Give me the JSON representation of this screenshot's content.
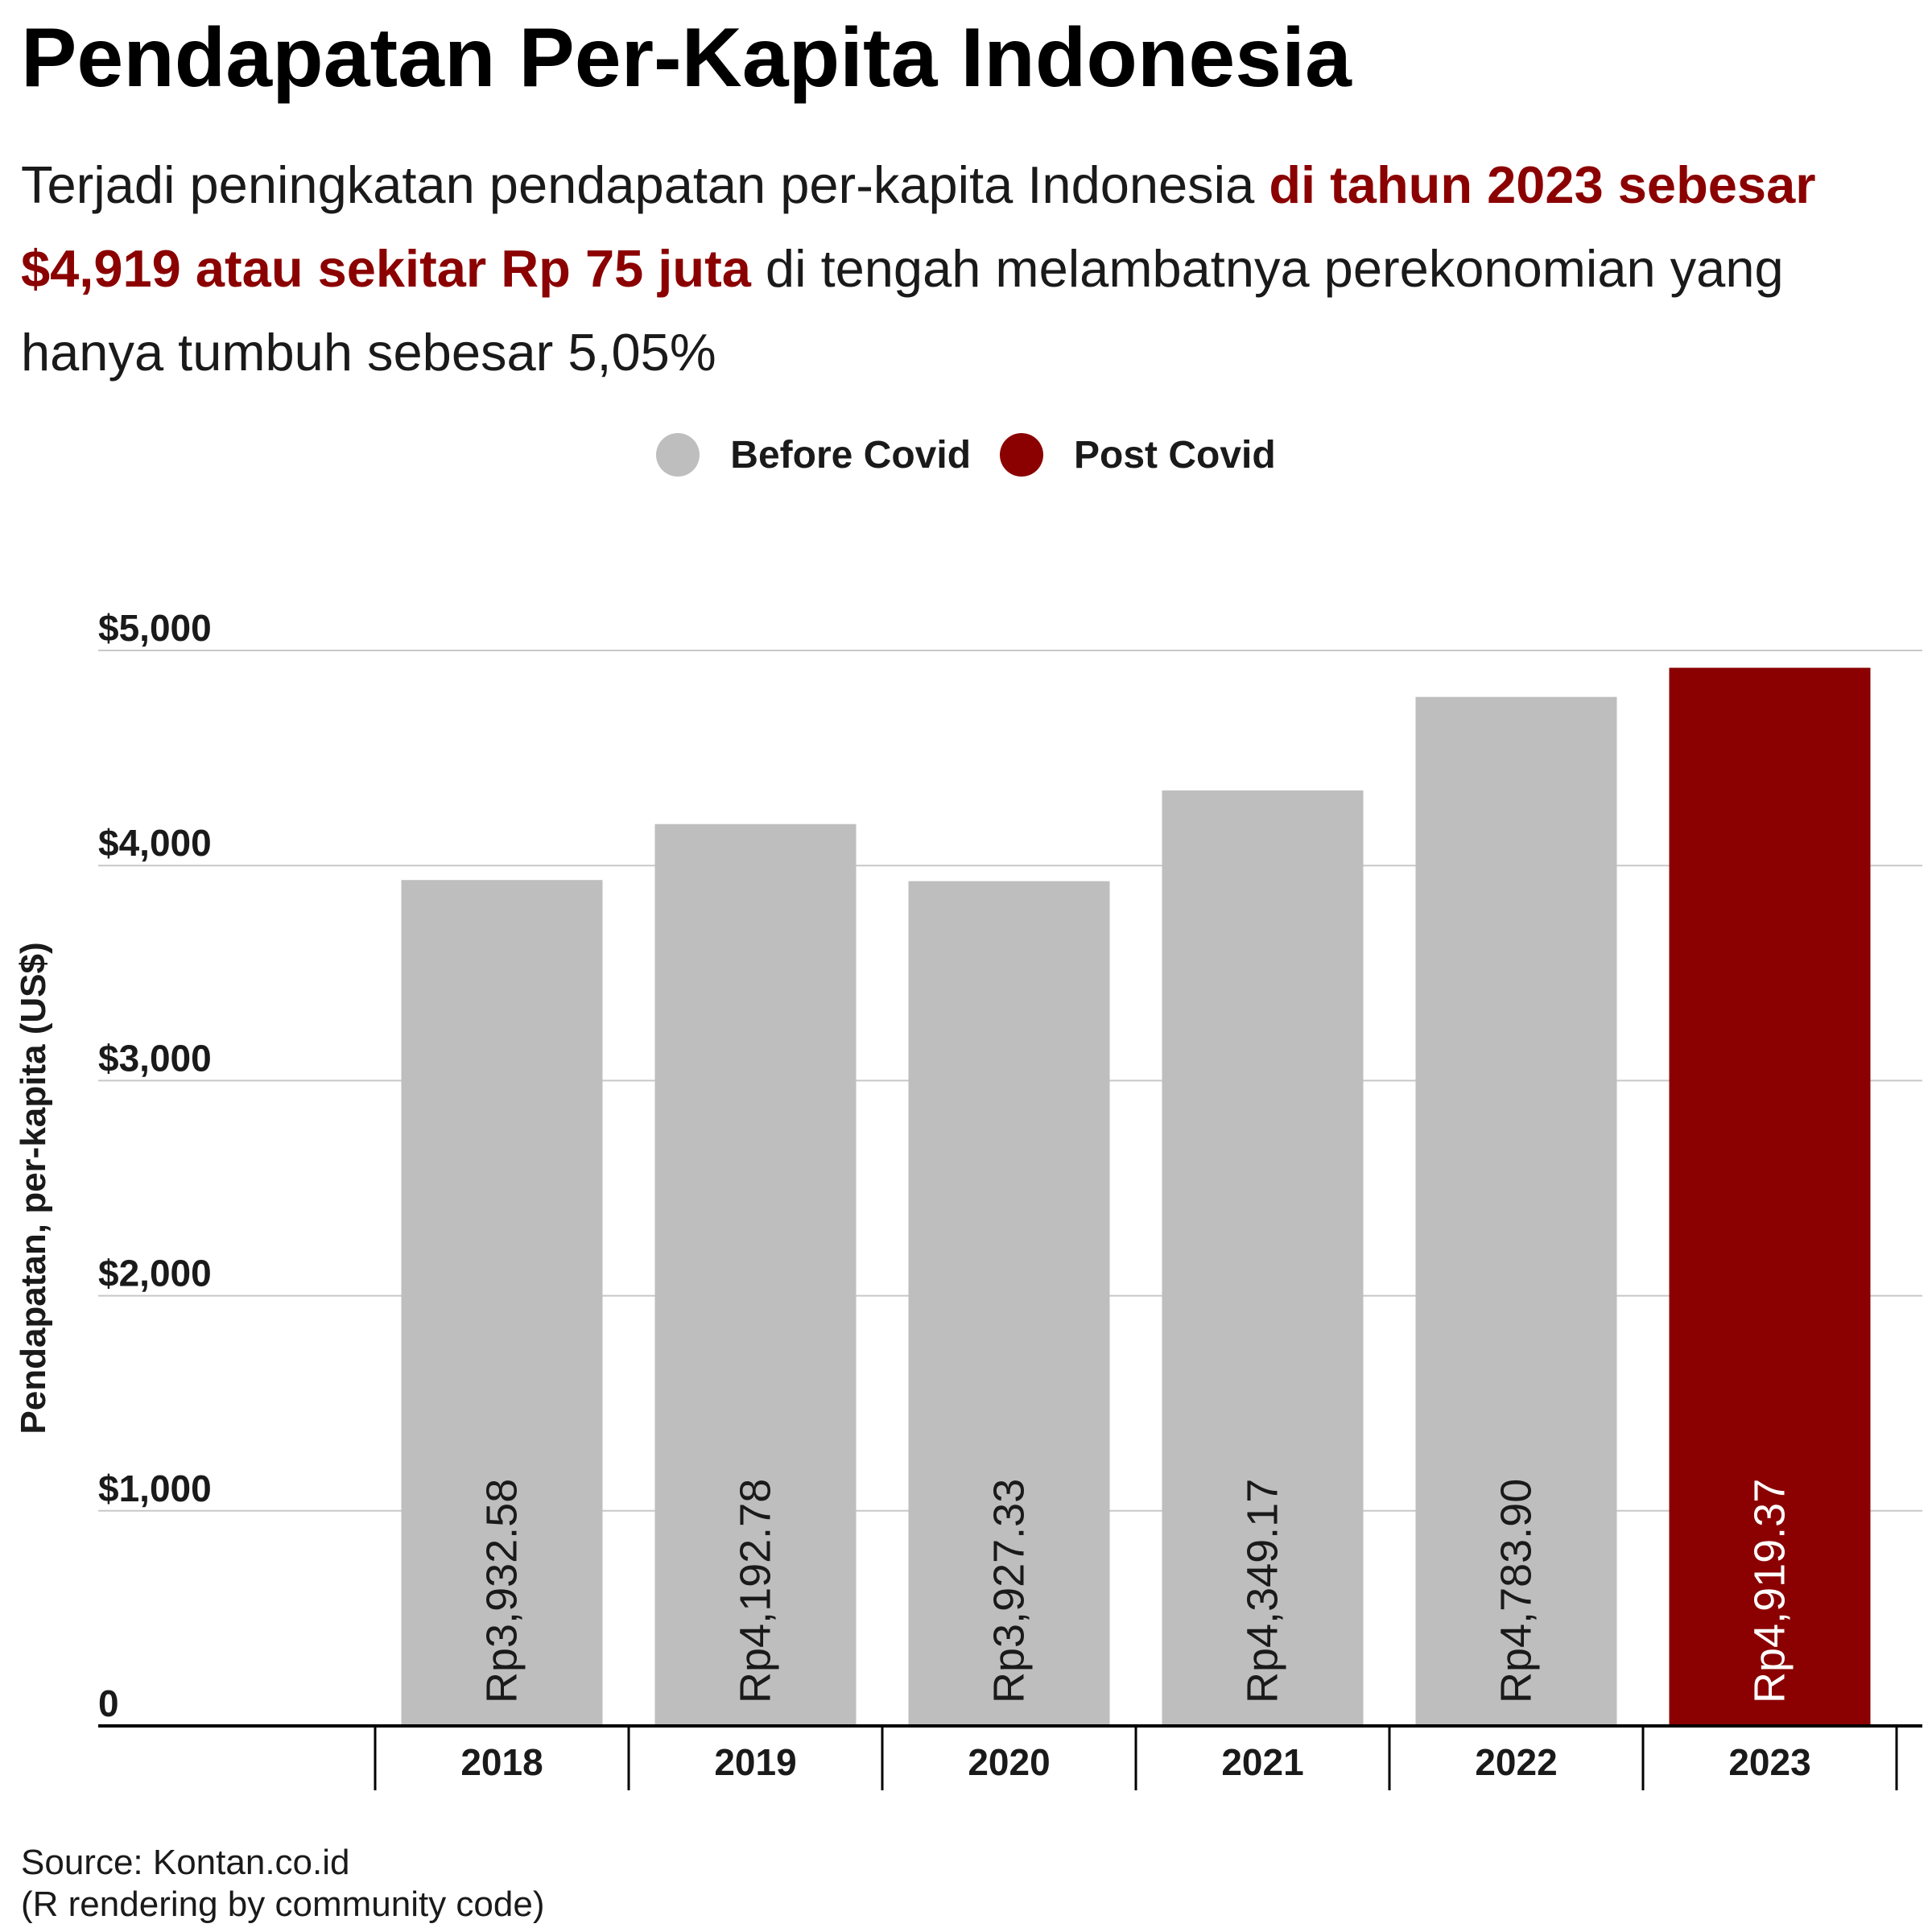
{
  "title": "Pendapatan Per-Kapita Indonesia",
  "subtitle": {
    "part1": "Terjadi peningkatan pendapatan per-kapita Indonesia ",
    "highlight": "di tahun 2023 sebesar $4,919 atau sekitar Rp 75 juta",
    "part2": " di tengah melambatnya perekonomian yang hanya tumbuh sebesar 5,05%"
  },
  "legend": [
    {
      "label": "Before Covid",
      "color": "#bebebe"
    },
    {
      "label": "Post Covid",
      "color": "#8b0000"
    }
  ],
  "caption": {
    "line1": "Source: Kontan.co.id",
    "line2": "(R rendering by community code)"
  },
  "chart_data": {
    "type": "bar",
    "categories": [
      "2018",
      "2019",
      "2020",
      "2021",
      "2022",
      "2023"
    ],
    "values": [
      3932.58,
      4192.78,
      3927.33,
      4349.17,
      4783.9,
      4919.37
    ],
    "labels": [
      "Rp3,932.58",
      "Rp4,192.78",
      "Rp3,927.33",
      "Rp4,349.17",
      "Rp4,783.90",
      "Rp4,919.37"
    ],
    "groups": [
      "Before Covid",
      "Before Covid",
      "Before Covid",
      "Before Covid",
      "Before Covid",
      "Post Covid"
    ],
    "colors": [
      "#bebebe",
      "#bebebe",
      "#bebebe",
      "#bebebe",
      "#bebebe",
      "#8b0000"
    ],
    "label_colors": [
      "#1a1a1a",
      "#1a1a1a",
      "#1a1a1a",
      "#1a1a1a",
      "#1a1a1a",
      "#ffffff"
    ],
    "ylabel": "Pendapatan, per-kapita (US$)",
    "yticks": [
      0,
      1000,
      2000,
      3000,
      4000,
      5000
    ],
    "ytick_labels": [
      "0",
      "$1,000",
      "$2,000",
      "$3,000",
      "$4,000",
      "$5,000"
    ],
    "ylim": [
      0,
      5000
    ],
    "grid": true,
    "legend_position": "top"
  }
}
